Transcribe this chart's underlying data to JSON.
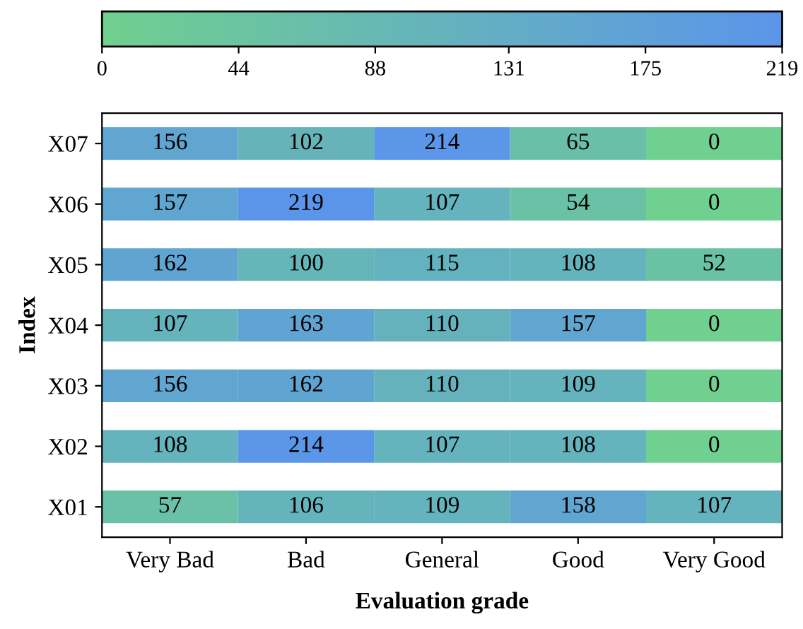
{
  "chart_data": {
    "type": "heatmap",
    "xlabel": "Evaluation grade",
    "ylabel": "Index",
    "categories": [
      "Very Bad",
      "Bad",
      "General",
      "Good",
      "Very Good"
    ],
    "y_categories": [
      "X07",
      "X06",
      "X05",
      "X04",
      "X03",
      "X02",
      "X01"
    ],
    "cells": [
      [
        156,
        102,
        214,
        65,
        0
      ],
      [
        157,
        219,
        107,
        54,
        0
      ],
      [
        162,
        100,
        115,
        108,
        52
      ],
      [
        107,
        163,
        110,
        157,
        0
      ],
      [
        156,
        162,
        110,
        109,
        0
      ],
      [
        108,
        214,
        107,
        108,
        0
      ],
      [
        57,
        106,
        109,
        158,
        107
      ]
    ],
    "clim": [
      0,
      219
    ],
    "cticks": [
      0,
      44,
      88,
      131,
      175,
      219
    ],
    "data_labels": true
  }
}
